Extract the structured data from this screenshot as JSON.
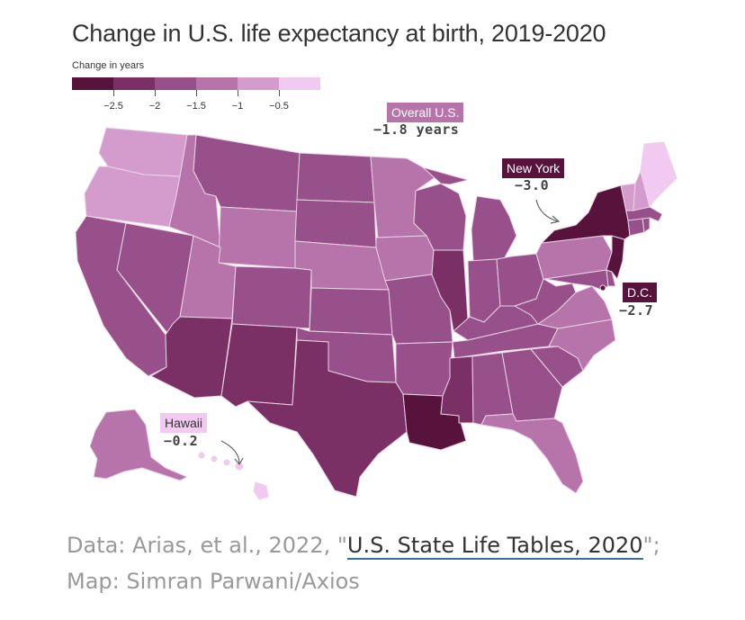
{
  "title": "Change in U.S. life expectancy at birth, 2019-2020",
  "legend": {
    "label": "Change in years",
    "colors": [
      "#57133c",
      "#7a3065",
      "#98508a",
      "#b774ab",
      "#d49ccd",
      "#f2c9f0"
    ],
    "ticks": [
      "−2.5",
      "−2",
      "−1.5",
      "−1",
      "−0.5"
    ]
  },
  "callouts": {
    "overall": {
      "label": "Overall U.S.",
      "value": "−1.8 years"
    },
    "new_york": {
      "label": "New York",
      "value": "−3.0"
    },
    "dc": {
      "label": "D.C.",
      "value": "−2.7"
    },
    "hawaii": {
      "label": "Hawaii",
      "value": "−0.2"
    }
  },
  "map_data": {
    "scale_colors": {
      "c1": "#57133c",
      "c2": "#7a3065",
      "c3": "#98508a",
      "c4": "#b774ab",
      "c5": "#d49ccd",
      "c6": "#f2c9f0"
    },
    "states": {
      "WA": "c5",
      "OR": "c5",
      "CA": "c3",
      "NV": "c3",
      "ID": "c4",
      "MT": "c3",
      "WY": "c4",
      "UT": "c4",
      "AZ": "c2",
      "NM": "c2",
      "CO": "c3",
      "ND": "c3",
      "SD": "c3",
      "NE": "c4",
      "KS": "c3",
      "OK": "c3",
      "TX": "c2",
      "MN": "c4",
      "IA": "c4",
      "MO": "c3",
      "AR": "c3",
      "LA": "c1",
      "WI": "c3",
      "IL": "c2",
      "MI": "c3",
      "IN": "c3",
      "OH": "c3",
      "KY": "c3",
      "TN": "c3",
      "MS": "c2",
      "AL": "c3",
      "GA": "c3",
      "FL": "c4",
      "SC": "c3",
      "NC": "c4",
      "VA": "c4",
      "WV": "c3",
      "PA": "c4",
      "NY": "c1",
      "NJ": "c1",
      "MD": "c3",
      "DE": "c3",
      "CT": "c3",
      "RI": "c3",
      "MA": "c3",
      "VT": "c5",
      "NH": "c5",
      "ME": "c6",
      "AK": "c4",
      "HI": "c6",
      "DC": "c1"
    }
  },
  "source": {
    "prefix": "Data: Arias, et al., 2022, \"",
    "link": "U.S. State Life Tables, 2020",
    "suffix": "\";",
    "line2": "Map: Simran Parwani/Axios"
  }
}
